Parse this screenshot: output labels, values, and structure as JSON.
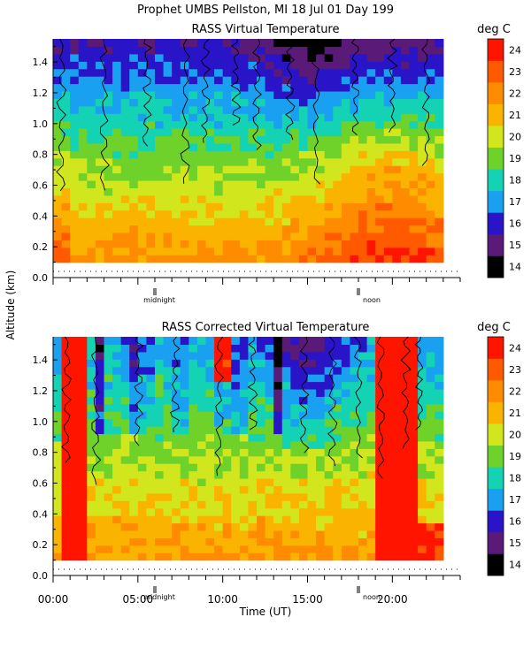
{
  "header": {
    "title": "Prophet  UMBS Pellston, MI   18 Jul 01 Day 199"
  },
  "y_axis_label": "Altitude (km)",
  "x_axis_label": "Time (UT)",
  "colorbar": {
    "unit_label": "deg C",
    "levels": [
      14,
      15,
      16,
      17,
      18,
      19,
      20,
      21,
      22,
      23,
      24
    ],
    "colors": [
      "#000000",
      "#5a1a78",
      "#2a14c8",
      "#1aa0f0",
      "#14d2b4",
      "#6ed22a",
      "#d2e61e",
      "#fab400",
      "#ff8c00",
      "#ff5a00",
      "#ff1400"
    ]
  },
  "chart_data": [
    {
      "type": "heatmap",
      "title": "RASS Virtual Temperature",
      "ylabel": "Altitude (km)",
      "ylim": [
        0.0,
        1.55
      ],
      "xlim": [
        0,
        24
      ],
      "y_ticks": [
        "0.0",
        "0.2",
        "0.4",
        "0.6",
        "0.8",
        "1.0",
        "1.2",
        "1.4"
      ],
      "markers": [
        {
          "x": 6,
          "label": "midnight"
        },
        {
          "x": 18,
          "label": "noon"
        }
      ],
      "value_unit": "deg C",
      "approximate_field_description_values": {
        "times_hours": [
          0,
          4,
          8,
          12,
          16,
          20,
          23
        ],
        "altitudes_km": [
          0.2,
          0.6,
          1.0,
          1.4
        ],
        "values": [
          [
            23,
            21,
            20,
            20,
            21,
            23,
            23
          ],
          [
            21,
            20,
            19,
            19,
            19,
            20,
            20
          ],
          [
            19,
            19,
            18,
            18,
            16,
            17,
            17
          ],
          [
            17,
            17,
            18,
            18,
            16,
            16,
            15
          ]
        ]
      }
    },
    {
      "type": "heatmap",
      "title": "RASS Corrected Virtual Temperature",
      "ylabel": "Altitude (km)",
      "xlabel": "Time (UT)",
      "ylim": [
        0.0,
        1.55
      ],
      "xlim": [
        0,
        24
      ],
      "y_ticks": [
        "0.0",
        "0.2",
        "0.4",
        "0.6",
        "0.8",
        "1.0",
        "1.2",
        "1.4"
      ],
      "x_ticks": [
        "00:00",
        "05:00",
        "10:00",
        "15:00",
        "20:00"
      ],
      "markers": [
        {
          "x": 6,
          "label": "midnight"
        },
        {
          "x": 18,
          "label": "noon"
        }
      ],
      "value_unit": "deg C",
      "approximate_field_description_values": {
        "times_hours": [
          0,
          1,
          4,
          8,
          12,
          16,
          20,
          23
        ],
        "altitudes_km": [
          0.2,
          0.6,
          1.0,
          1.4
        ],
        "values": [
          [
            22,
            24,
            21,
            21,
            21,
            22,
            24,
            21
          ],
          [
            21,
            24,
            19,
            19,
            19,
            20,
            24,
            19
          ],
          [
            19,
            24,
            18,
            18,
            18,
            17,
            24,
            18
          ],
          [
            18,
            24,
            17,
            18,
            18,
            16,
            24,
            17
          ]
        ]
      }
    }
  ]
}
